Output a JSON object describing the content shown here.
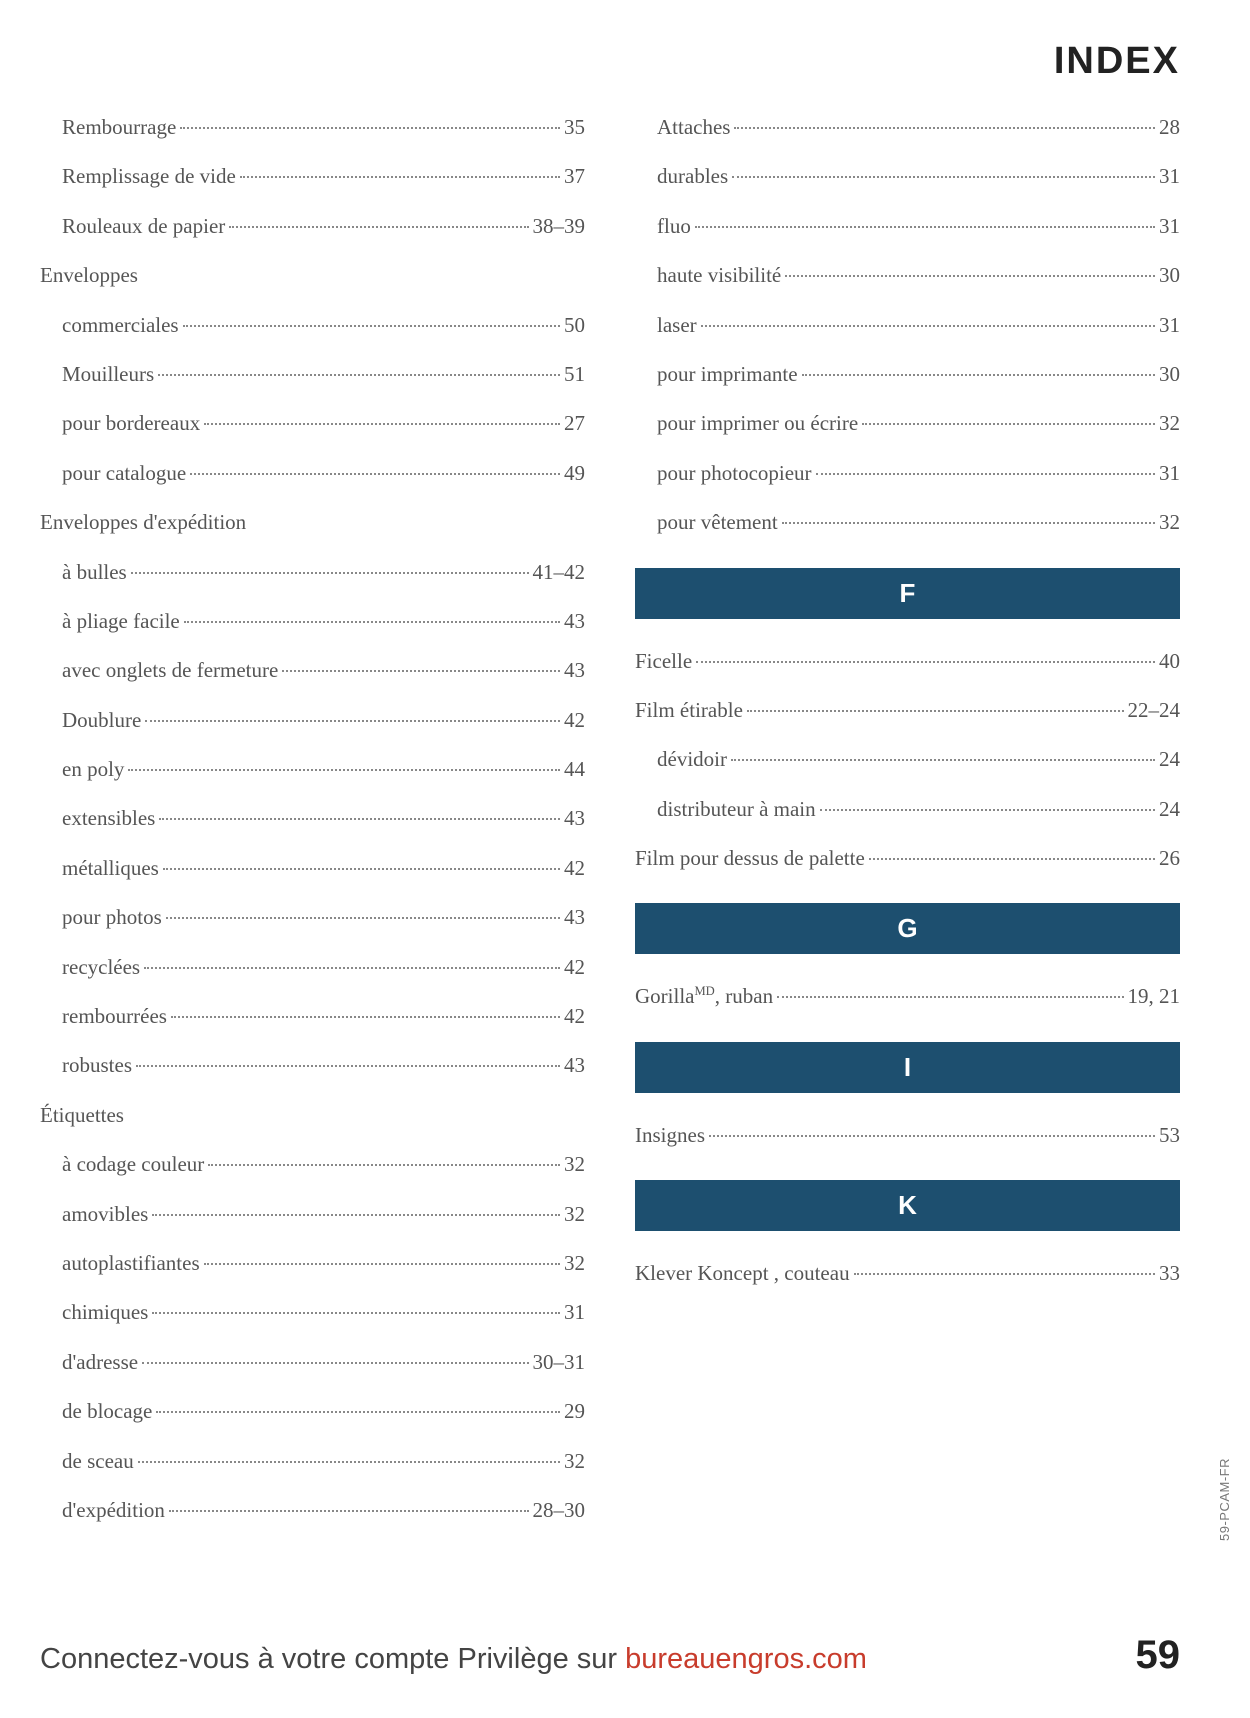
{
  "title": "INDEX",
  "colors": {
    "section_bar_bg": "#1d4f6f",
    "section_bar_text": "#ffffff",
    "text": "#555555",
    "footer_link": "#c83c2c"
  },
  "left_column": [
    {
      "type": "entry",
      "sub": true,
      "label": "Rembourrage",
      "page": "35"
    },
    {
      "type": "entry",
      "sub": true,
      "label": "Remplissage de vide",
      "page": "37"
    },
    {
      "type": "entry",
      "sub": true,
      "label": "Rouleaux de papier",
      "page": "38–39"
    },
    {
      "type": "heading",
      "label": "Enveloppes"
    },
    {
      "type": "entry",
      "sub": true,
      "label": "commerciales",
      "page": "50"
    },
    {
      "type": "entry",
      "sub": true,
      "label": "Mouilleurs",
      "page": "51"
    },
    {
      "type": "entry",
      "sub": true,
      "label": "pour bordereaux",
      "page": "27"
    },
    {
      "type": "entry",
      "sub": true,
      "label": "pour catalogue",
      "page": "49"
    },
    {
      "type": "heading",
      "label": "Enveloppes d'expédition"
    },
    {
      "type": "entry",
      "sub": true,
      "label": "à bulles",
      "page": "41–42"
    },
    {
      "type": "entry",
      "sub": true,
      "label": "à pliage facile",
      "page": "43"
    },
    {
      "type": "entry",
      "sub": true,
      "label": "avec onglets de fermeture",
      "page": "43"
    },
    {
      "type": "entry",
      "sub": true,
      "label": "Doublure",
      "page": "42"
    },
    {
      "type": "entry",
      "sub": true,
      "label": "en poly",
      "page": "44"
    },
    {
      "type": "entry",
      "sub": true,
      "label": "extensibles",
      "page": "43"
    },
    {
      "type": "entry",
      "sub": true,
      "label": "métalliques",
      "page": "42"
    },
    {
      "type": "entry",
      "sub": true,
      "label": "pour photos",
      "page": "43"
    },
    {
      "type": "entry",
      "sub": true,
      "label": "recyclées",
      "page": "42"
    },
    {
      "type": "entry",
      "sub": true,
      "label": "rembourrées",
      "page": "42"
    },
    {
      "type": "entry",
      "sub": true,
      "label": "robustes",
      "page": "43"
    },
    {
      "type": "heading",
      "label": "Étiquettes"
    },
    {
      "type": "entry",
      "sub": true,
      "label": "à codage couleur",
      "page": "32"
    },
    {
      "type": "entry",
      "sub": true,
      "label": "amovibles",
      "page": "32"
    },
    {
      "type": "entry",
      "sub": true,
      "label": "autoplastifiantes",
      "page": "32"
    },
    {
      "type": "entry",
      "sub": true,
      "label": "chimiques",
      "page": "31"
    },
    {
      "type": "entry",
      "sub": true,
      "label": "d'adresse",
      "page": "30–31"
    },
    {
      "type": "entry",
      "sub": true,
      "label": "de blocage",
      "page": "29"
    },
    {
      "type": "entry",
      "sub": true,
      "label": "de sceau",
      "page": "32"
    },
    {
      "type": "entry",
      "sub": true,
      "label": "d'expédition",
      "page": "28–30"
    }
  ],
  "right_column": [
    {
      "type": "entry",
      "sub": true,
      "label": "Attaches",
      "page": "28"
    },
    {
      "type": "entry",
      "sub": true,
      "label": "durables",
      "page": "31"
    },
    {
      "type": "entry",
      "sub": true,
      "label": "fluo",
      "page": "31"
    },
    {
      "type": "entry",
      "sub": true,
      "label": "haute visibilité",
      "page": "30"
    },
    {
      "type": "entry",
      "sub": true,
      "label": "laser",
      "page": "31"
    },
    {
      "type": "entry",
      "sub": true,
      "label": "pour imprimante",
      "page": "30"
    },
    {
      "type": "entry",
      "sub": true,
      "label": "pour imprimer ou écrire",
      "page": "32"
    },
    {
      "type": "entry",
      "sub": true,
      "label": "pour photocopieur",
      "page": "31"
    },
    {
      "type": "entry",
      "sub": true,
      "label": "pour vêtement",
      "page": "32"
    },
    {
      "type": "section",
      "letter": "F"
    },
    {
      "type": "entry",
      "sub": false,
      "label": "Ficelle",
      "page": "40"
    },
    {
      "type": "entry",
      "sub": false,
      "label": "Film étirable",
      "page": "22–24"
    },
    {
      "type": "entry",
      "sub": true,
      "label": "dévidoir",
      "page": "24"
    },
    {
      "type": "entry",
      "sub": true,
      "label": "distributeur à main",
      "page": "24"
    },
    {
      "type": "entry",
      "sub": false,
      "label": "Film pour dessus de palette",
      "page": "26"
    },
    {
      "type": "section",
      "letter": "G"
    },
    {
      "type": "entry",
      "sub": false,
      "label_html": "Gorilla<sup>MD</sup>, ruban",
      "page": "19, 21"
    },
    {
      "type": "section",
      "letter": "I"
    },
    {
      "type": "entry",
      "sub": false,
      "label": "Insignes",
      "page": "53"
    },
    {
      "type": "section",
      "letter": "K"
    },
    {
      "type": "entry",
      "sub": false,
      "label": "Klever Koncept , couteau",
      "page": "33"
    }
  ],
  "footer": {
    "text_prefix": "Connectez-vous à votre compte Privilège sur ",
    "link_text": "bureauengros.com",
    "page_number": "59"
  },
  "side_code": "59-PCAM-FR"
}
